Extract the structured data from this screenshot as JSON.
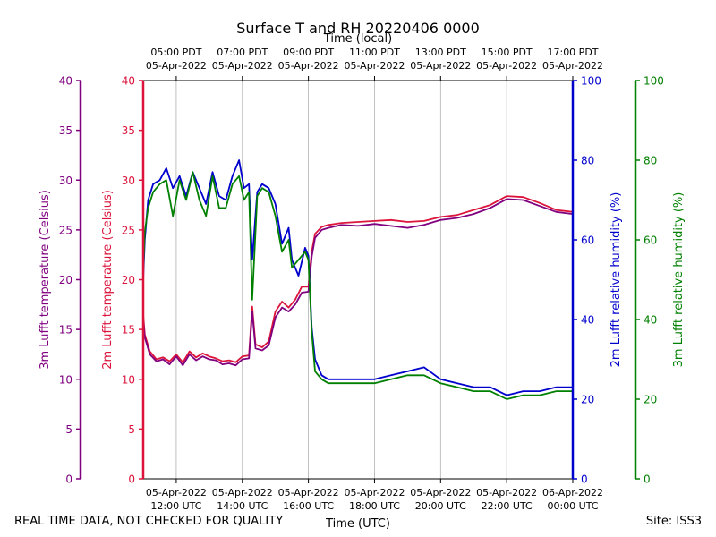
{
  "chart_data": {
    "type": "line",
    "title": "Surface T and RH 20220406 0000",
    "xlabel_bottom": "Time (UTC)",
    "xlabel_top": "Time (local)",
    "x_range_utc_hours": [
      11,
      24
    ],
    "bottom_ticks": [
      {
        "hour": 12,
        "line1": "05-Apr-2022",
        "line2": "12:00 UTC"
      },
      {
        "hour": 14,
        "line1": "05-Apr-2022",
        "line2": "14:00 UTC"
      },
      {
        "hour": 16,
        "line1": "05-Apr-2022",
        "line2": "16:00 UTC"
      },
      {
        "hour": 18,
        "line1": "05-Apr-2022",
        "line2": "18:00 UTC"
      },
      {
        "hour": 20,
        "line1": "05-Apr-2022",
        "line2": "20:00 UTC"
      },
      {
        "hour": 22,
        "line1": "05-Apr-2022",
        "line2": "22:00 UTC"
      },
      {
        "hour": 24,
        "line1": "06-Apr-2022",
        "line2": "00:00 UTC"
      }
    ],
    "top_ticks": [
      {
        "hour": 12,
        "line1": "05:00 PDT",
        "line2": "05-Apr-2022"
      },
      {
        "hour": 14,
        "line1": "07:00 PDT",
        "line2": "05-Apr-2022"
      },
      {
        "hour": 16,
        "line1": "09:00 PDT",
        "line2": "05-Apr-2022"
      },
      {
        "hour": 18,
        "line1": "11:00 PDT",
        "line2": "05-Apr-2022"
      },
      {
        "hour": 20,
        "line1": "13:00 PDT",
        "line2": "05-Apr-2022"
      },
      {
        "hour": 22,
        "line1": "15:00 PDT",
        "line2": "05-Apr-2022"
      },
      {
        "hour": 24,
        "line1": "17:00 PDT",
        "line2": "05-Apr-2022"
      }
    ],
    "grid": "vertical",
    "axes": {
      "t3m": {
        "label": "3m Lufft temperature (Celsius)",
        "color": "#800080",
        "ylim": [
          0,
          40
        ],
        "ticks": [
          0,
          5,
          10,
          15,
          20,
          25,
          30,
          35,
          40
        ],
        "side": "left-outer"
      },
      "t2m": {
        "label": "2m Lufft temperature (Celsius)",
        "color": "#DC143C",
        "ylim": [
          0,
          40
        ],
        "ticks": [
          0,
          5,
          10,
          15,
          20,
          25,
          30,
          35,
          40
        ],
        "side": "left-inner"
      },
      "rh2m": {
        "label": "2m Lufft relative humidity (%)",
        "color": "#0000CD",
        "ylim": [
          0,
          100
        ],
        "ticks": [
          0,
          20,
          40,
          60,
          80,
          100
        ],
        "side": "right-inner"
      },
      "rh3m": {
        "label": "3m Lufft relative humidity (%)",
        "color": "#008000",
        "ylim": [
          0,
          100
        ],
        "ticks": [
          0,
          20,
          40,
          60,
          80,
          100
        ],
        "side": "right-outer"
      }
    },
    "series": [
      {
        "axis": "t2m",
        "color": "#DC143C",
        "x": [
          11.0,
          11.05,
          11.2,
          11.4,
          11.6,
          11.8,
          12.0,
          12.2,
          12.4,
          12.6,
          12.8,
          13.0,
          13.2,
          13.4,
          13.6,
          13.8,
          14.0,
          14.2,
          14.3,
          14.4,
          14.6,
          14.8,
          15.0,
          15.2,
          15.4,
          15.6,
          15.8,
          16.0,
          16.1,
          16.2,
          16.4,
          16.6,
          17.0,
          17.5,
          18.0,
          18.5,
          19.0,
          19.5,
          20.0,
          20.5,
          21.0,
          21.5,
          22.0,
          22.5,
          23.0,
          23.5,
          24.0
        ],
        "y": [
          16.5,
          14.5,
          12.8,
          12.0,
          12.2,
          11.8,
          12.5,
          11.7,
          12.8,
          12.2,
          12.6,
          12.3,
          12.1,
          11.8,
          11.9,
          11.7,
          12.3,
          12.4,
          17.3,
          13.5,
          13.2,
          13.8,
          16.8,
          17.8,
          17.2,
          18.0,
          19.3,
          19.3,
          22.8,
          24.6,
          25.3,
          25.5,
          25.7,
          25.8,
          25.9,
          26.0,
          25.8,
          25.9,
          26.3,
          26.5,
          27.0,
          27.5,
          28.4,
          28.3,
          27.7,
          27.0,
          26.8
        ]
      },
      {
        "axis": "t3m",
        "color": "#800080",
        "x": [
          11.0,
          11.05,
          11.2,
          11.4,
          11.6,
          11.8,
          12.0,
          12.2,
          12.4,
          12.6,
          12.8,
          13.0,
          13.2,
          13.4,
          13.6,
          13.8,
          14.0,
          14.2,
          14.3,
          14.4,
          14.6,
          14.8,
          15.0,
          15.2,
          15.4,
          15.6,
          15.8,
          16.0,
          16.1,
          16.2,
          16.4,
          16.6,
          17.0,
          17.5,
          18.0,
          18.5,
          19.0,
          19.5,
          20.0,
          20.5,
          21.0,
          21.5,
          22.0,
          22.5,
          23.0,
          23.5,
          24.0
        ],
        "y": [
          16.0,
          14.2,
          12.5,
          11.8,
          12.0,
          11.5,
          12.3,
          11.4,
          12.5,
          11.9,
          12.3,
          12.0,
          11.9,
          11.5,
          11.6,
          11.4,
          12.0,
          12.1,
          16.8,
          13.1,
          12.9,
          13.4,
          16.2,
          17.2,
          16.8,
          17.5,
          18.7,
          18.8,
          22.3,
          24.2,
          25.0,
          25.2,
          25.5,
          25.4,
          25.6,
          25.4,
          25.2,
          25.5,
          26.0,
          26.2,
          26.6,
          27.2,
          28.1,
          28.0,
          27.4,
          26.8,
          26.6
        ]
      },
      {
        "axis": "rh2m",
        "color": "#0000CD",
        "x": [
          11.0,
          11.05,
          11.15,
          11.3,
          11.5,
          11.7,
          11.9,
          12.1,
          12.3,
          12.5,
          12.7,
          12.9,
          13.1,
          13.3,
          13.5,
          13.7,
          13.9,
          14.05,
          14.2,
          14.3,
          14.45,
          14.6,
          14.8,
          15.0,
          15.2,
          15.4,
          15.5,
          15.7,
          15.9,
          16.0,
          16.1,
          16.2,
          16.4,
          16.6,
          17.0,
          17.5,
          18.0,
          18.5,
          19.0,
          19.5,
          20.0,
          20.5,
          21.0,
          21.5,
          22.0,
          22.5,
          23.0,
          23.5,
          24.0
        ],
        "y": [
          50,
          60,
          70,
          74,
          75,
          78,
          73,
          76,
          71,
          77,
          73,
          69,
          77,
          71,
          70,
          76,
          80,
          73,
          74,
          55,
          72,
          74,
          73,
          69,
          59,
          63,
          55,
          51,
          58,
          56,
          38,
          30,
          26,
          25,
          25,
          25,
          25,
          26,
          27,
          28,
          25,
          24,
          23,
          23,
          21,
          22,
          22,
          23,
          23
        ]
      },
      {
        "axis": "rh3m",
        "color": "#008000",
        "x": [
          11.0,
          11.05,
          11.15,
          11.3,
          11.5,
          11.7,
          11.9,
          12.1,
          12.3,
          12.5,
          12.7,
          12.9,
          13.1,
          13.3,
          13.5,
          13.7,
          13.9,
          14.05,
          14.2,
          14.3,
          14.45,
          14.6,
          14.8,
          15.0,
          15.2,
          15.4,
          15.5,
          15.7,
          15.9,
          16.0,
          16.1,
          16.2,
          16.4,
          16.6,
          17.0,
          17.5,
          18.0,
          18.5,
          19.0,
          19.5,
          20.0,
          20.5,
          21.0,
          21.5,
          22.0,
          22.5,
          23.0,
          23.5,
          24.0
        ],
        "y": [
          52,
          62,
          68,
          72,
          74,
          75,
          66,
          75,
          70,
          77,
          70,
          66,
          76,
          68,
          68,
          74,
          76,
          70,
          72,
          45,
          71,
          73,
          72,
          66,
          57,
          60,
          53,
          55,
          57,
          55,
          37,
          27,
          25,
          24,
          24,
          24,
          24,
          25,
          26,
          26,
          24,
          23,
          22,
          22,
          20,
          21,
          21,
          22,
          22
        ]
      }
    ]
  },
  "footer": {
    "left": "REAL TIME DATA, NOT CHECKED FOR QUALITY",
    "right": "Site: ISS3"
  }
}
